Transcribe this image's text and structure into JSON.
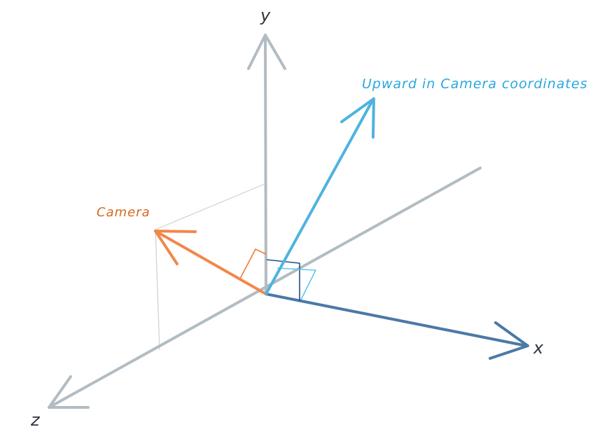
{
  "axes": {
    "x_label": "x",
    "y_label": "y",
    "z_label": "z"
  },
  "vectors": {
    "camera_label": "Camera",
    "upward_label": "Upward in Camera coordinates"
  },
  "colors": {
    "world_axis": "#b2bcc2",
    "guide_line": "#cfcfcf",
    "camera": "#f2874a",
    "camera_text": "#d2691e",
    "upward": "#4fb3de",
    "upward_text": "#2aa7e0",
    "x_axis": "#4a79a8",
    "right_angle_dark": "#1f4f87",
    "right_angle_light": "#5cc8ea",
    "right_angle_orange": "#ee7b3a"
  }
}
